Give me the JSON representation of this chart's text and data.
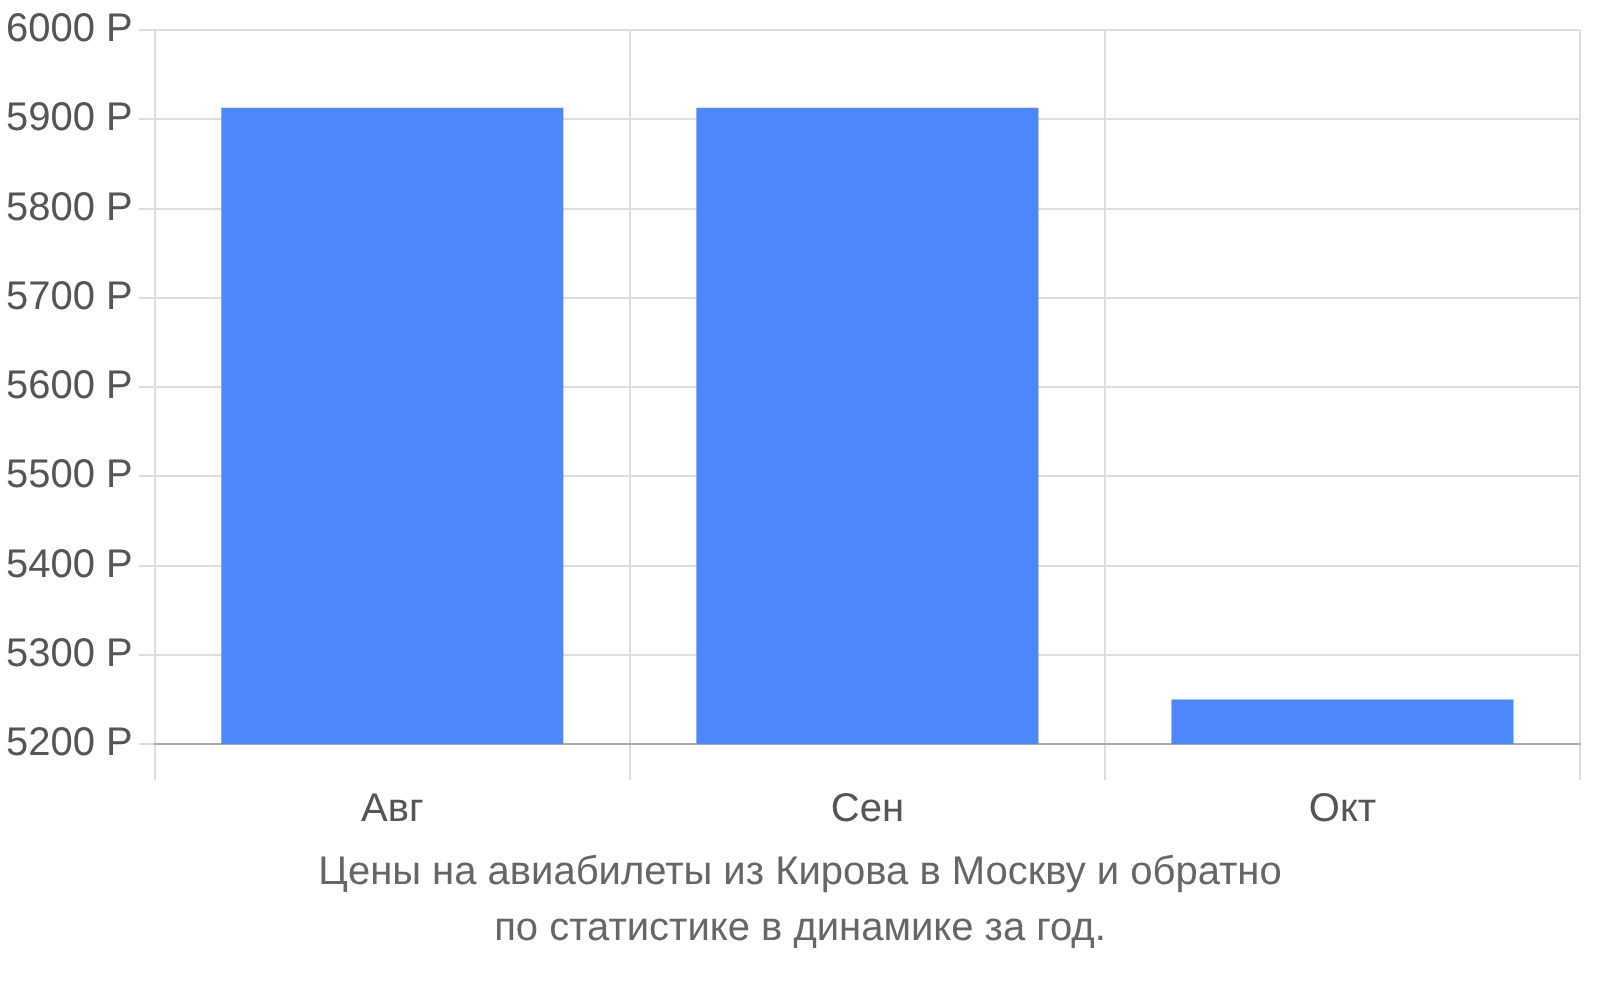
{
  "chart_data": {
    "type": "bar",
    "categories": [
      "Авг",
      "Сен",
      "Окт"
    ],
    "values": [
      5913,
      5913,
      5250
    ],
    "color": "#4d88fb",
    "ylim": [
      5200,
      6000
    ],
    "yticks": [
      {
        "value": 5200,
        "label": "5200 Р"
      },
      {
        "value": 5300,
        "label": "5300 Р"
      },
      {
        "value": 5400,
        "label": "5400 Р"
      },
      {
        "value": 5500,
        "label": "5500 Р"
      },
      {
        "value": 5600,
        "label": "5600 Р"
      },
      {
        "value": 5700,
        "label": "5700 Р"
      },
      {
        "value": 5800,
        "label": "5800 Р"
      },
      {
        "value": 5900,
        "label": "5900 Р"
      },
      {
        "value": 6000,
        "label": "6000 Р"
      }
    ],
    "grid": true,
    "annotations": [
      "Цены на авиабилеты из Кирова в Москву и обратно",
      "по статистике в динамике за год."
    ]
  }
}
